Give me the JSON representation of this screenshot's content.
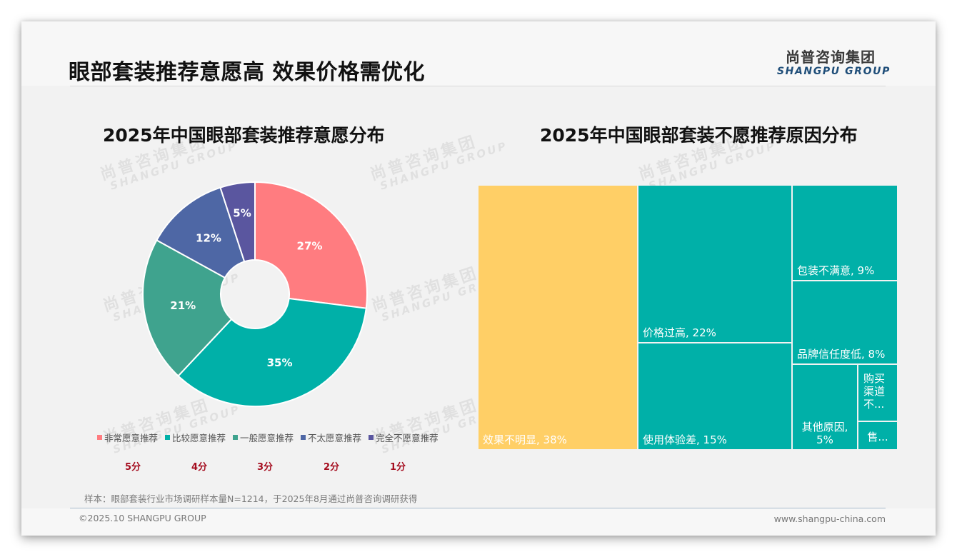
{
  "header": {
    "title": "眼部套装推荐意愿高 效果价格需优化",
    "logo_cn": "尚普咨询集团",
    "logo_en": "SHANGPU GROUP"
  },
  "watermark": {
    "cn": "尚普咨询集团",
    "en": "SHANGPU GROUP"
  },
  "colors": {
    "pink": "#FF7C80",
    "teal": "#00B0A8",
    "green": "#3FA38E",
    "blue": "#4E67A5",
    "purple": "#5A569F",
    "yellow": "#FFCF66",
    "score_red": "#A50D1F"
  },
  "chart_data": [
    {
      "type": "pie",
      "subtype": "donut",
      "title": "2025年中国眼部套装推荐意愿分布",
      "categories": [
        "非常愿意推荐",
        "比较愿意推荐",
        "一般愿意推荐",
        "不太愿意推荐",
        "完全不愿意推荐"
      ],
      "values": [
        27,
        35,
        21,
        12,
        5
      ],
      "labels": [
        "27%",
        "35%",
        "21%",
        "12%",
        "5%"
      ],
      "scores": [
        "5分",
        "4分",
        "3分",
        "2分",
        "1分"
      ],
      "colors": [
        "#FF7C80",
        "#00B0A8",
        "#3FA38E",
        "#4E67A5",
        "#5A569F"
      ],
      "legend_position": "bottom",
      "unit": "%"
    },
    {
      "type": "treemap",
      "title": "2025年中国眼部套装不愿推荐原因分布",
      "categories": [
        "效果不明显",
        "价格过高",
        "使用体验差",
        "包装不满意",
        "品牌信任度低",
        "其他原因",
        "购买渠道不便",
        "售后服务差"
      ],
      "values": [
        38,
        22,
        15,
        9,
        8,
        5,
        null,
        null
      ],
      "labels": [
        "效果不明显, 38%",
        "价格过高, 22%",
        "使用体验差, 15%",
        "包装不满意, 9%",
        "品牌信任度低, 8%",
        "其他原因, 5%",
        "购买渠道不...",
        "售..."
      ],
      "colors": [
        "#FFCF66",
        "#00B0A8",
        "#00B0A8",
        "#00B0A8",
        "#00B0A8",
        "#00B0A8",
        "#00B0A8",
        "#00B0A8"
      ],
      "unit": "%"
    }
  ],
  "pie_legend": [
    {
      "label": "非常愿意推荐",
      "color": "#FF7C80",
      "score": "5分"
    },
    {
      "label": "比较愿意推荐",
      "color": "#00B0A8",
      "score": "4分"
    },
    {
      "label": "一般愿意推荐",
      "color": "#3FA38E",
      "score": "3分"
    },
    {
      "label": "不太愿意推荐",
      "color": "#4E67A5",
      "score": "2分"
    },
    {
      "label": "完全不愿意推荐",
      "color": "#5A569F",
      "score": "1分"
    }
  ],
  "treemap_tiles": [
    {
      "label": "效果不明显, 38%"
    },
    {
      "label": "价格过高, 22%"
    },
    {
      "label": "使用体验差, 15%"
    },
    {
      "label": "包装不满意, 9%"
    },
    {
      "label": "品牌信任度低, 8%"
    },
    {
      "label": "其他原因, 5%"
    },
    {
      "label": "购买渠道不..."
    },
    {
      "label": "售..."
    }
  ],
  "footer": {
    "source": "样本：眼部套装行业市场调研样本量N=1214，于2025年8月通过尚普咨询调研获得",
    "copyright": "©2025.10 SHANGPU GROUP",
    "website": "www.shangpu-china.com"
  }
}
